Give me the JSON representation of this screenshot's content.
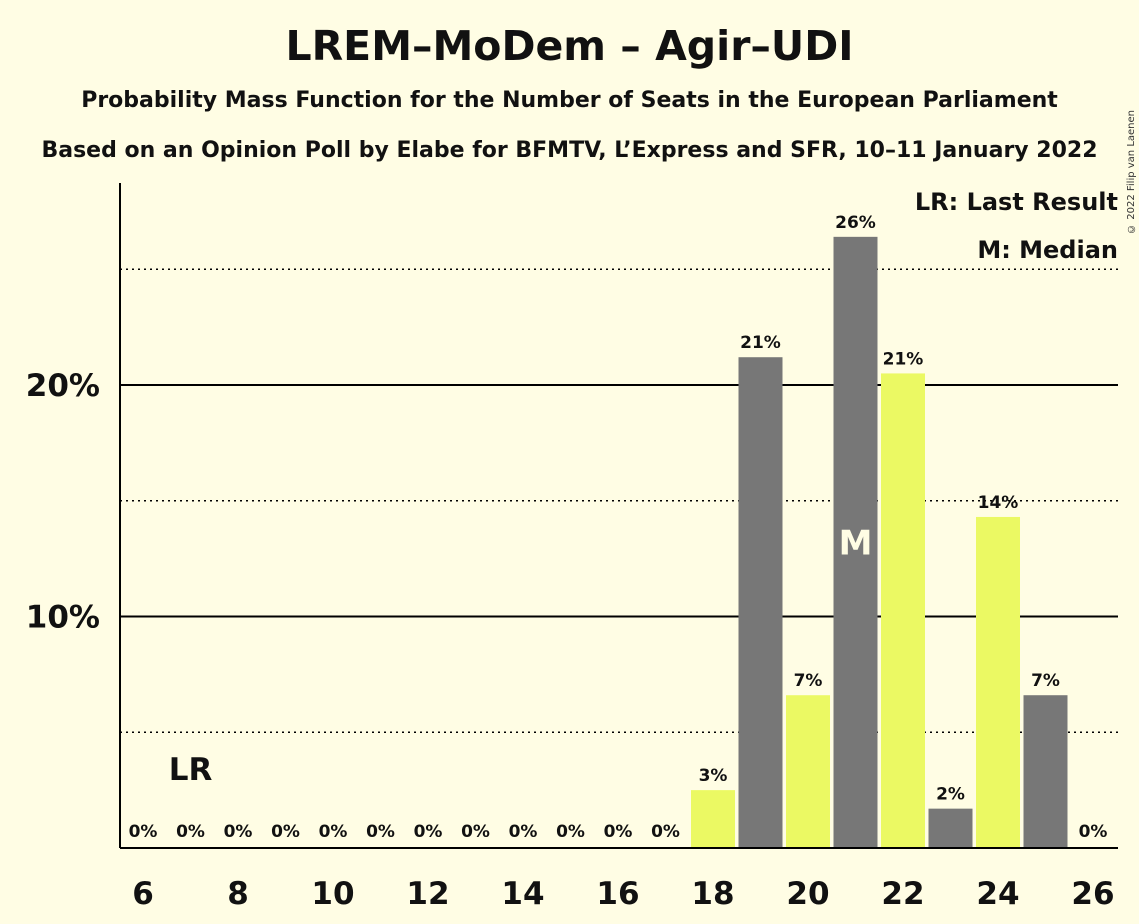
{
  "title": "LREM–MoDem – Agir–UDI",
  "subtitle": "Probability Mass Function for the Number of Seats in the European Parliament",
  "subtitle2": "Based on an Opinion Poll by Elabe for BFMTV, L’Express and SFR, 10–11 January 2022",
  "copyright": "© 2022 Filip van Laenen",
  "legend": {
    "last_result": "LR: Last Result",
    "median": "M: Median"
  },
  "markers": {
    "last_result_label": "LR",
    "last_result_seat": 7,
    "median_label": "M",
    "median_seat": 21
  },
  "colors": {
    "background": "#FFFDE4",
    "bar_yellow": "#EBF963",
    "bar_grey": "#777777",
    "axis": "#000000"
  },
  "chart_data": {
    "type": "bar",
    "seats": [
      6,
      7,
      8,
      9,
      10,
      11,
      12,
      13,
      14,
      15,
      16,
      17,
      18,
      19,
      20,
      21,
      22,
      23,
      24,
      25,
      26
    ],
    "values": [
      0,
      0,
      0,
      0,
      0,
      0,
      0,
      0,
      0,
      0,
      0,
      0,
      2.5,
      21.2,
      6.6,
      26.4,
      20.5,
      1.7,
      14.3,
      6.6,
      0
    ],
    "value_labels": [
      "0%",
      "0%",
      "0%",
      "0%",
      "0%",
      "0%",
      "0%",
      "0%",
      "0%",
      "0%",
      "0%",
      "0%",
      "3%",
      "21%",
      "7%",
      "26%",
      "21%",
      "2%",
      "14%",
      "7%",
      "0%"
    ],
    "bar_colors": [
      "yellow",
      "grey",
      "yellow",
      "grey",
      "yellow",
      "grey",
      "yellow",
      "grey",
      "yellow",
      "grey",
      "yellow",
      "grey",
      "yellow",
      "grey",
      "yellow",
      "grey",
      "yellow",
      "grey",
      "yellow",
      "grey",
      "yellow"
    ],
    "x_ticks": [
      6,
      8,
      10,
      12,
      14,
      16,
      18,
      20,
      22,
      24,
      26
    ],
    "y_ticks": [
      {
        "value": 10,
        "label": "10%"
      },
      {
        "value": 20,
        "label": "20%"
      }
    ],
    "y_minor_gridlines": [
      5,
      15,
      25
    ],
    "ylim": [
      0,
      28.8
    ],
    "xlim": [
      5.5,
      26.5
    ]
  }
}
